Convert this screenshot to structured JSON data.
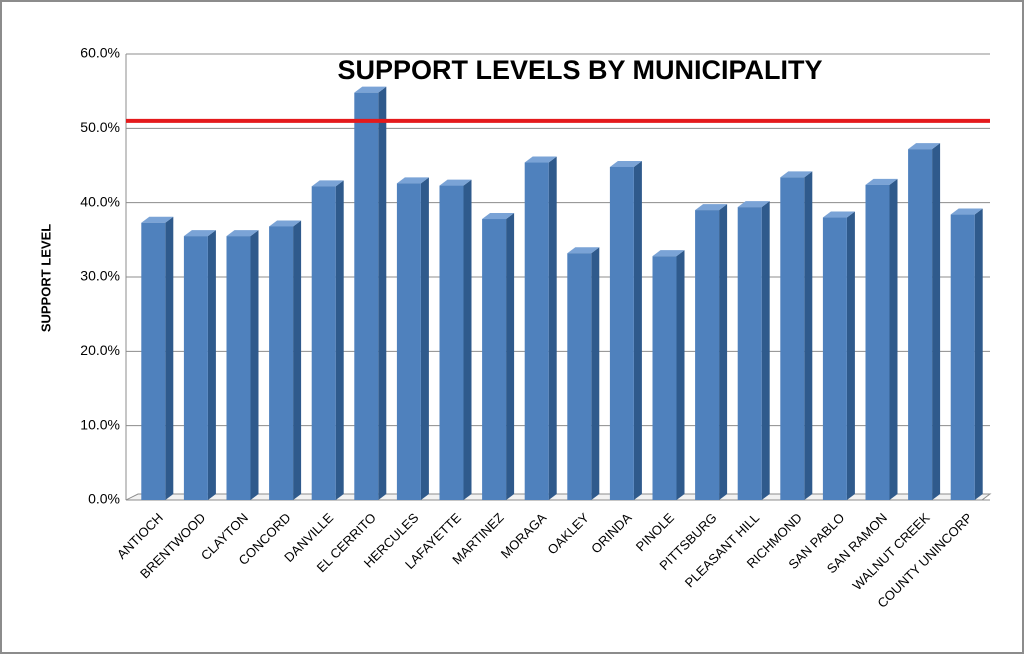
{
  "chart_data": {
    "type": "bar3d",
    "title": "SUPPORT LEVELS BY MUNICIPALITY",
    "y_label": "SUPPORT LEVEL",
    "categories": [
      "ANTIOCH",
      "BRENTWOOD",
      "CLAYTON",
      "CONCORD",
      "DANVILLE",
      "EL CERRITO",
      "HERCULES",
      "LAFAYETTE",
      "MARTINEZ",
      "MORAGA",
      "OAKLEY",
      "ORINDA",
      "PINOLE",
      "PITTSBURG",
      "PLEASANT HILL",
      "RICHMOND",
      "SAN PABLO",
      "SAN RAMON",
      "WALNUT CREEK",
      "COUNTY UNINCORP"
    ],
    "values": [
      37.3,
      35.5,
      35.5,
      36.8,
      42.2,
      54.8,
      42.6,
      42.3,
      37.8,
      45.4,
      33.2,
      44.8,
      32.8,
      39.0,
      39.4,
      43.4,
      38.0,
      42.4,
      47.2,
      38.4
    ],
    "color": "#4f81bd",
    "ylim": [
      0,
      60
    ],
    "yticks": [
      {
        "value": 0,
        "label": "0.0%"
      },
      {
        "value": 10,
        "label": "10.0%"
      },
      {
        "value": 20,
        "label": "20.0%"
      },
      {
        "value": 30,
        "label": "30.0%"
      },
      {
        "value": 40,
        "label": "40.0%"
      },
      {
        "value": 50,
        "label": "50.0%"
      },
      {
        "value": 60,
        "label": "60.0%"
      }
    ],
    "grid": true,
    "reference_line": {
      "value": 51,
      "color": "#e41a1c"
    }
  }
}
